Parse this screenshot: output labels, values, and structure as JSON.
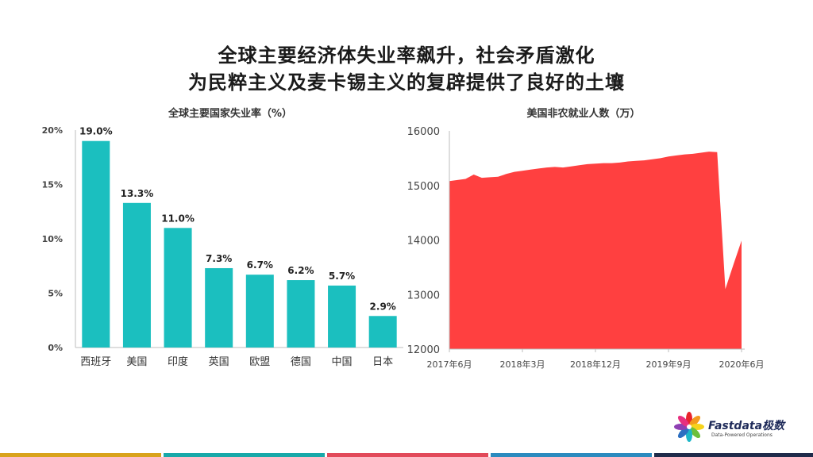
{
  "header": {
    "line1": "全球主要经济体失业率飙升，社会矛盾激化",
    "line2": "为民粹主义及麦卡锡主义的复辟提供了良好的土壤"
  },
  "logo": {
    "text": "Fastdata极数",
    "sub": "Data-Powered Operations",
    "icon": "flower-logo-icon"
  },
  "colors": {
    "bar": "#1bbfbf",
    "area": "#ff4040",
    "bar_gold": "#d9a31c",
    "bar_teal": "#18a9a9",
    "bar_red": "#e24a5a",
    "bar_blue": "#2b8bbf",
    "bar_navy": "#1f2b4a"
  },
  "chart_data": [
    {
      "type": "bar",
      "title": "全球主要国家失业率（%）",
      "categories": [
        "西班牙",
        "美国",
        "印度",
        "英国",
        "欧盟",
        "德国",
        "中国",
        "日本"
      ],
      "values": [
        19.0,
        13.3,
        11.0,
        7.3,
        6.7,
        6.2,
        5.7,
        2.9
      ],
      "data_labels": [
        "19.0%",
        "13.3%",
        "11.0%",
        "7.3%",
        "6.7%",
        "6.2%",
        "5.7%",
        "2.9%"
      ],
      "ylim": [
        0,
        20
      ],
      "yticks": [
        0,
        5,
        10,
        15,
        20
      ],
      "ytick_labels": [
        "0%",
        "5%",
        "10%",
        "15%",
        "20%"
      ],
      "grid": false
    },
    {
      "type": "area",
      "title": "美国非农就业人数（万）",
      "x": [
        "2017-06",
        "2017-07",
        "2017-08",
        "2017-09",
        "2017-10",
        "2017-11",
        "2017-12",
        "2018-01",
        "2018-02",
        "2018-03",
        "2018-04",
        "2018-05",
        "2018-06",
        "2018-07",
        "2018-08",
        "2018-09",
        "2018-10",
        "2018-11",
        "2018-12",
        "2019-01",
        "2019-02",
        "2019-03",
        "2019-04",
        "2019-05",
        "2019-06",
        "2019-07",
        "2019-08",
        "2019-09",
        "2019-10",
        "2019-11",
        "2019-12",
        "2020-01",
        "2020-02",
        "2020-03",
        "2020-04",
        "2020-05",
        "2020-06"
      ],
      "values": [
        15080,
        15100,
        15120,
        15200,
        15140,
        15150,
        15160,
        15210,
        15250,
        15270,
        15290,
        15310,
        15330,
        15340,
        15330,
        15350,
        15370,
        15390,
        15400,
        15410,
        15410,
        15420,
        15440,
        15450,
        15460,
        15480,
        15500,
        15530,
        15550,
        15570,
        15580,
        15600,
        15620,
        15610,
        13100,
        13550,
        13990
      ],
      "xtick_labels": [
        "2017年6月",
        "2018年3月",
        "2018年12月",
        "2019年9月",
        "2020年6月"
      ],
      "xtick_values": [
        "2017-06",
        "2018-03",
        "2018-12",
        "2019-09",
        "2020-06"
      ],
      "ylim": [
        12000,
        16000
      ],
      "yticks": [
        12000,
        13000,
        14000,
        15000,
        16000
      ],
      "ytick_labels": [
        "12000",
        "13000",
        "14000",
        "15000",
        "16000"
      ],
      "grid": false
    }
  ]
}
